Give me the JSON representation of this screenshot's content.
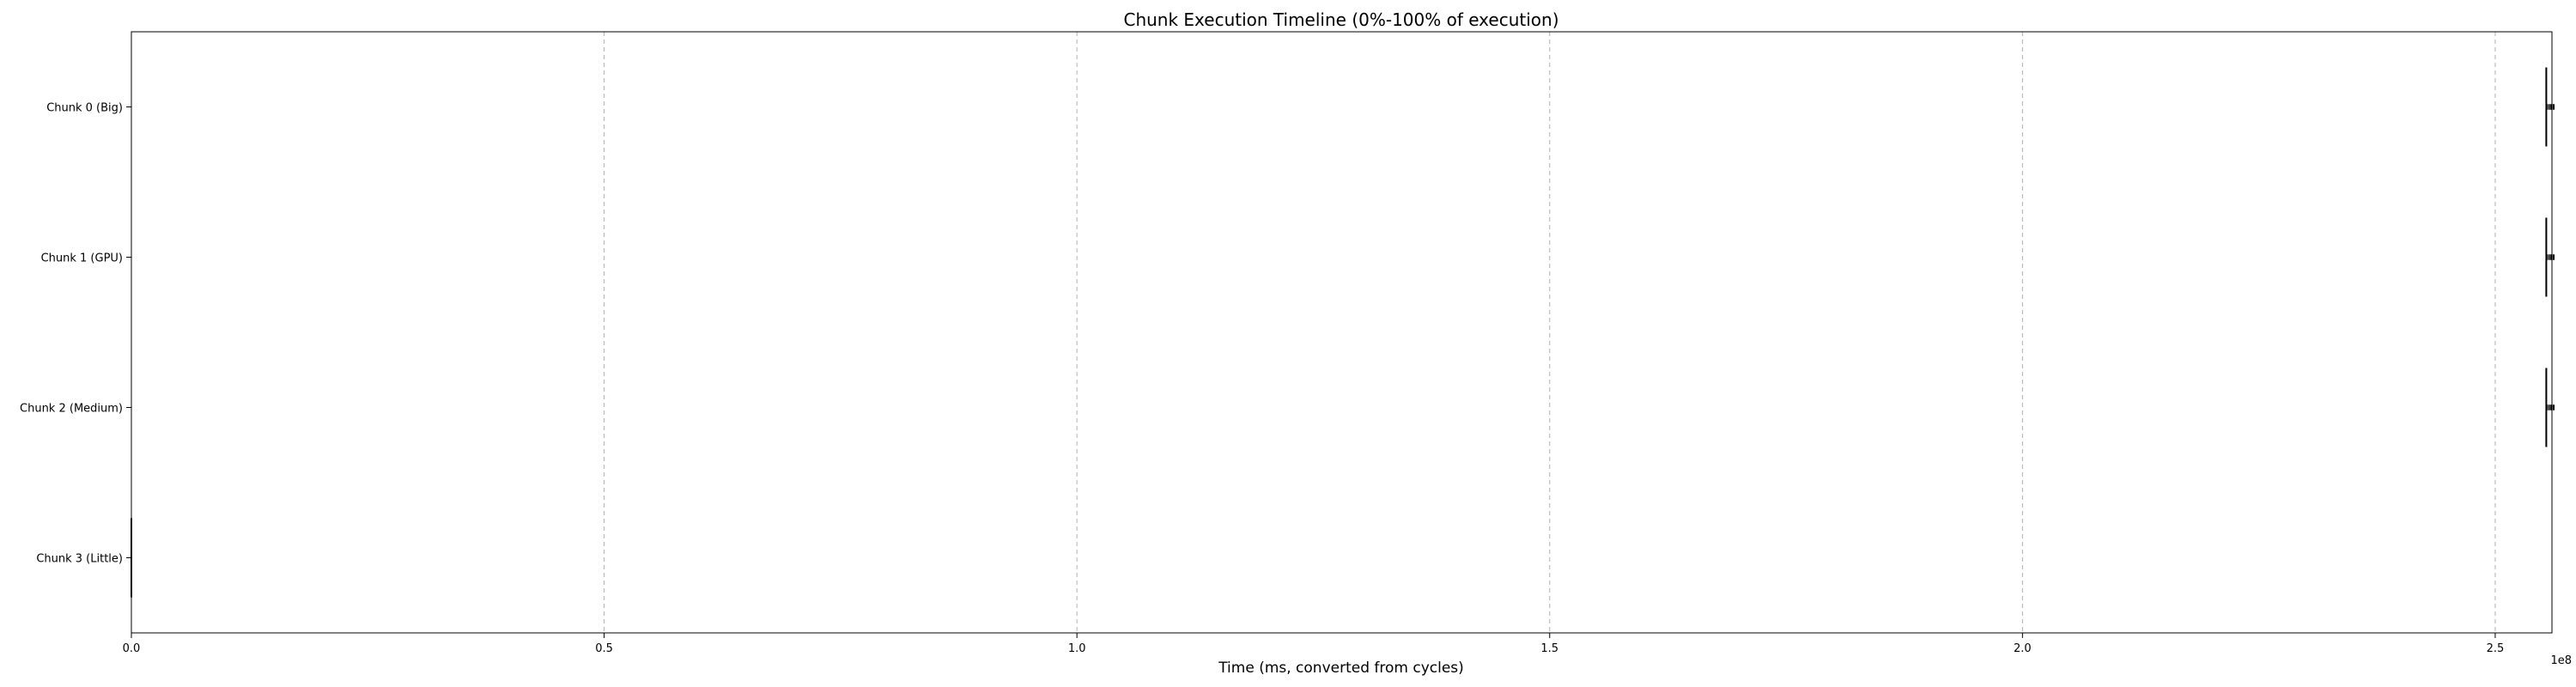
{
  "chart_data": {
    "type": "timeline",
    "title": "Chunk Execution Timeline (0%-100% of execution)",
    "xlabel": "Time (ms, converted from cycles)",
    "x_scale_label": "1e8",
    "xlim": [
      0,
      2.56
    ],
    "x_ticks": [
      0.0,
      0.5,
      1.0,
      1.5,
      2.0,
      2.5
    ],
    "x_tick_labels": [
      "0.0",
      "0.5",
      "1.0",
      "1.5",
      "2.0",
      "2.5"
    ],
    "grid": "x-dashed",
    "rows": [
      {
        "label": "Chunk 0 (Big)",
        "colors": {
          "bar": "#000000",
          "marker": "#000000"
        },
        "intervals": [
          [
            2.554,
            2.556
          ],
          [
            2.556,
            2.558
          ],
          [
            2.558,
            2.5605
          ],
          [
            2.5605,
            2.563
          ]
        ],
        "markers": [
          2.554
        ]
      },
      {
        "label": "Chunk 1 (GPU)",
        "colors": {
          "bar": "#000000",
          "marker": "#000000"
        },
        "intervals": [
          [
            2.554,
            2.556
          ],
          [
            2.556,
            2.558
          ],
          [
            2.558,
            2.5605
          ],
          [
            2.5605,
            2.563
          ]
        ],
        "markers": [
          2.554
        ]
      },
      {
        "label": "Chunk 2 (Medium)",
        "colors": {
          "bar": "#000000",
          "marker": "#000000"
        },
        "intervals": [
          [
            2.554,
            2.556
          ],
          [
            2.556,
            2.558
          ],
          [
            2.558,
            2.5605
          ],
          [
            2.5605,
            2.563
          ]
        ],
        "markers": [
          2.554
        ]
      },
      {
        "label": "Chunk 3 (Little)",
        "colors": {
          "bar": "#000000",
          "marker": "#000000"
        },
        "intervals": [],
        "markers": [
          0.0
        ]
      }
    ]
  }
}
